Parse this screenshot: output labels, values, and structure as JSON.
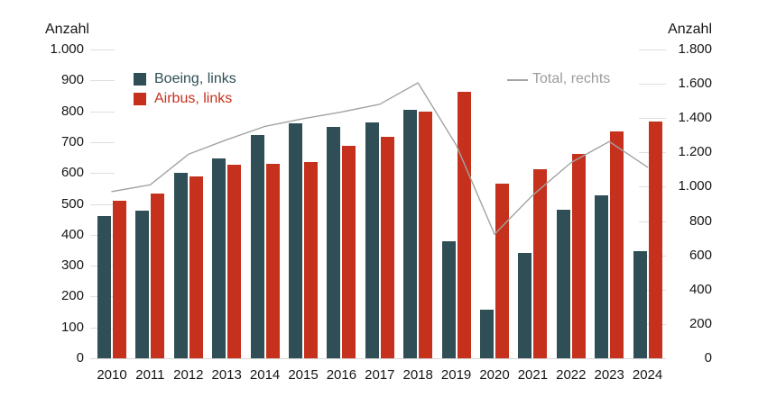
{
  "chart_data": {
    "type": "bar",
    "categories": [
      "2010",
      "2011",
      "2012",
      "2013",
      "2014",
      "2015",
      "2016",
      "2017",
      "2018",
      "2019",
      "2020",
      "2021",
      "2022",
      "2023",
      "2024"
    ],
    "series": [
      {
        "name": "Boeing, links",
        "type": "bar",
        "axis": "left",
        "color": "#2f4e55",
        "values": [
          462,
          477,
          601,
          648,
          723,
          762,
          748,
          763,
          806,
          380,
          157,
          340,
          480,
          528,
          348
        ]
      },
      {
        "name": "Airbus, links",
        "type": "bar",
        "axis": "left",
        "color": "#c5311c",
        "values": [
          510,
          534,
          588,
          626,
          629,
          635,
          688,
          718,
          800,
          863,
          566,
          611,
          661,
          735,
          766
        ]
      },
      {
        "name": "Total, rechts",
        "type": "line",
        "axis": "right",
        "color": "#a3a3a3",
        "values": [
          972,
          1011,
          1189,
          1274,
          1352,
          1397,
          1436,
          1481,
          1606,
          1243,
          723,
          951,
          1141,
          1263,
          1114
        ]
      }
    ],
    "left_axis": {
      "title": "Anzahl",
      "range": [
        0,
        1000
      ],
      "tick_labels": [
        "1.000",
        "900",
        "800",
        "700",
        "600",
        "500",
        "400",
        "300",
        "200",
        "100",
        "0"
      ],
      "tick_values": [
        1000,
        900,
        800,
        700,
        600,
        500,
        400,
        300,
        200,
        100,
        0
      ]
    },
    "right_axis": {
      "title": "Anzahl",
      "range": [
        0,
        1800
      ],
      "tick_labels": [
        "1.800",
        "1.600",
        "1.400",
        "1.200",
        "1.000",
        "800",
        "600",
        "400",
        "200",
        "0"
      ],
      "tick_values": [
        1800,
        1600,
        1400,
        1200,
        1000,
        800,
        600,
        400,
        200,
        0
      ]
    },
    "grid": "short tick dashes beside both axes, light bottom baseline, no full gridlines",
    "legend_position": "top-inside"
  }
}
